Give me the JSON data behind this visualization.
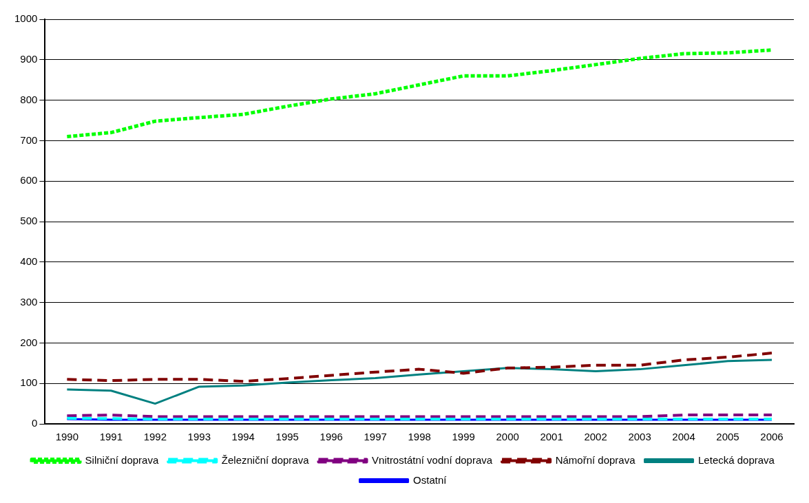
{
  "chart_data": {
    "type": "line",
    "categories": [
      "1990",
      "1991",
      "1992",
      "1993",
      "1994",
      "1995",
      "1996",
      "1997",
      "1998",
      "1999",
      "2000",
      "2001",
      "2002",
      "2003",
      "2004",
      "2005",
      "2006"
    ],
    "series": [
      {
        "name": "Silniční doprava",
        "color": "#00ff00",
        "line_style": "dotted",
        "values": [
          710,
          720,
          748,
          757,
          765,
          785,
          803,
          816,
          838,
          860,
          860,
          873,
          888,
          903,
          915,
          917,
          924
        ]
      },
      {
        "name": "Železniční doprava",
        "color": "#00ffff",
        "line_style": "dashed",
        "values": [
          14,
          13,
          12,
          12,
          12,
          12,
          12,
          12,
          12,
          12,
          12,
          12,
          12,
          12,
          12,
          12,
          12
        ]
      },
      {
        "name": "Vnitrostátní vodní doprava",
        "color": "#800080",
        "line_style": "dashed",
        "values": [
          20,
          22,
          18,
          18,
          18,
          18,
          18,
          18,
          18,
          18,
          18,
          18,
          18,
          18,
          22,
          22,
          22
        ]
      },
      {
        "name": "Námořní doprava",
        "color": "#800000",
        "line_style": "dashed",
        "values": [
          110,
          107,
          110,
          110,
          105,
          112,
          120,
          128,
          135,
          125,
          138,
          140,
          145,
          145,
          158,
          165,
          175
        ]
      },
      {
        "name": "Letecká doprava",
        "color": "#008080",
        "line_style": "solid",
        "values": [
          85,
          82,
          50,
          92,
          95,
          102,
          108,
          113,
          122,
          130,
          138,
          135,
          130,
          135,
          145,
          155,
          158
        ]
      },
      {
        "name": "Ostatní",
        "color": "#0000ff",
        "line_style": "solid",
        "values": [
          12,
          10,
          10,
          10,
          10,
          10,
          10,
          10,
          10,
          10,
          10,
          10,
          10,
          10,
          10,
          10,
          10
        ]
      }
    ],
    "ylim": [
      0,
      1000
    ],
    "yticks": [
      0,
      100,
      200,
      300,
      400,
      500,
      600,
      700,
      800,
      900,
      1000
    ],
    "grid": "y",
    "legend": "bottom",
    "marker": "none"
  }
}
